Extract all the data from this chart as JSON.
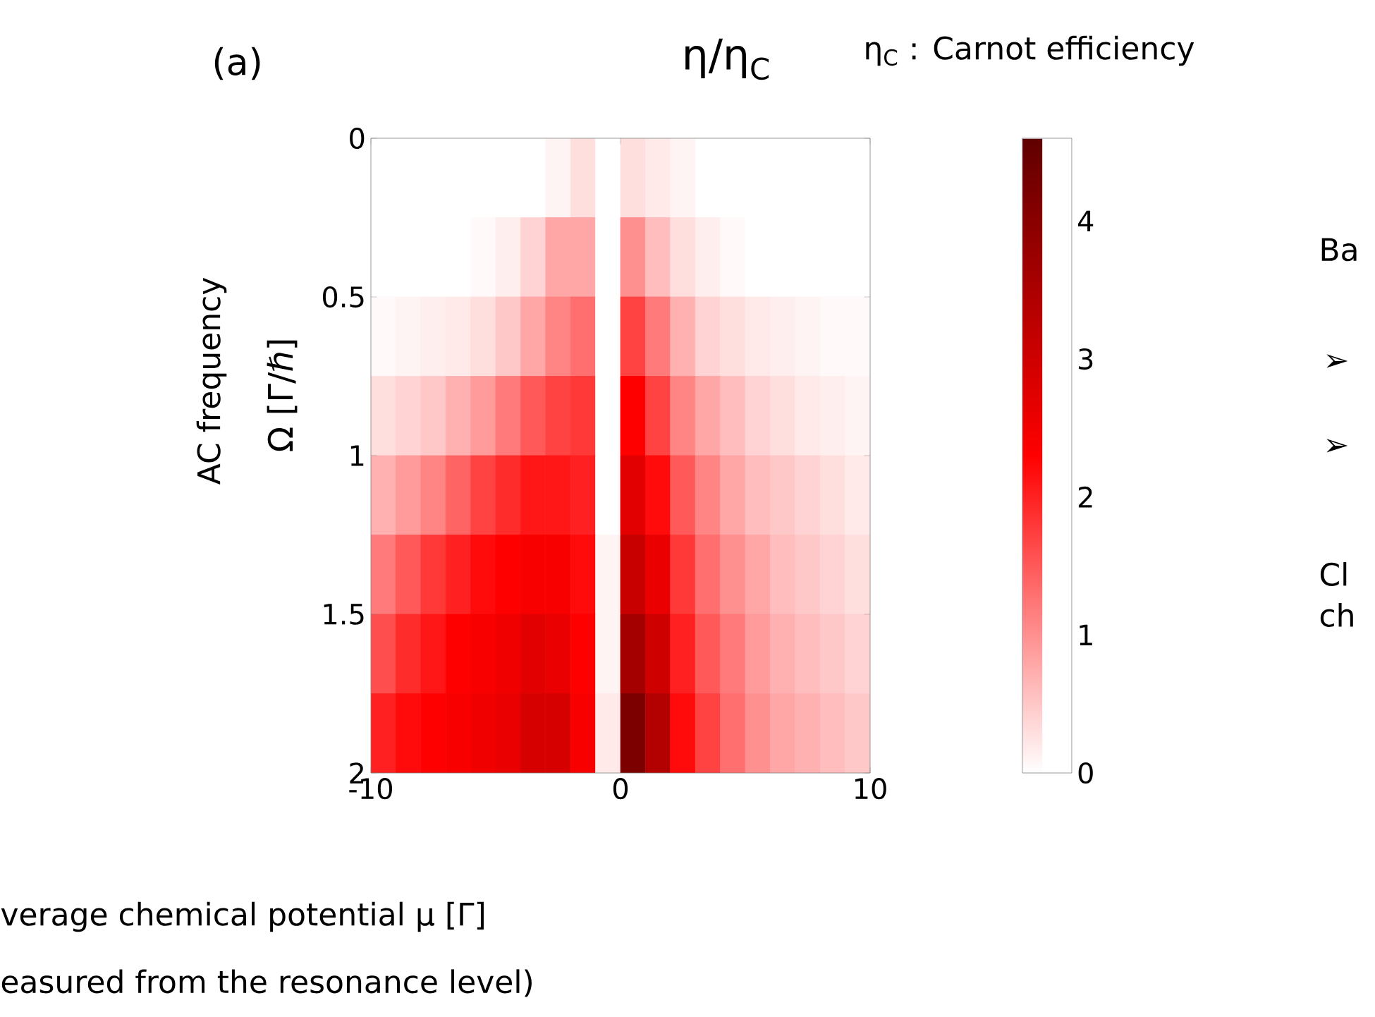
{
  "chart_data": {
    "type": "heatmap",
    "title": "η/η$_{C}$",
    "xlabel": "verage chemical potential μ [Γ]",
    "ylabel": "Ω [Γ/ℏ]",
    "annotations": [
      "(a)",
      "η$_{C}$ : Carnot efficiency",
      "AC frequency",
      "easured from the resonance level)",
      "Ba",
      "➢",
      "➢",
      "Cl",
      "ch"
    ],
    "xlim": [
      -10,
      10
    ],
    "ylim": [
      2,
      0
    ],
    "xticks": [
      -10,
      0,
      10
    ],
    "yticks": [
      0,
      0.5,
      1,
      1.5,
      2
    ],
    "clim": [
      0,
      4.6
    ],
    "cticks": [
      0,
      1,
      2,
      3,
      4
    ],
    "cells": [
      [
        0,
        0,
        0,
        0,
        0,
        0,
        0,
        0.1,
        0.3,
        0,
        0.3,
        0.2,
        0.1,
        0,
        0,
        0,
        0,
        0,
        0,
        0
      ],
      [
        0,
        0,
        0,
        0,
        0.05,
        0.15,
        0.4,
        0.8,
        0.8,
        0,
        1.0,
        0.6,
        0.3,
        0.15,
        0.05,
        0,
        0,
        0,
        0,
        0
      ],
      [
        0.05,
        0.1,
        0.15,
        0.2,
        0.3,
        0.5,
        0.8,
        1.1,
        1.3,
        0,
        1.7,
        1.2,
        0.7,
        0.4,
        0.3,
        0.2,
        0.15,
        0.1,
        0.05,
        0.05
      ],
      [
        0.3,
        0.4,
        0.5,
        0.7,
        0.9,
        1.2,
        1.5,
        1.7,
        1.8,
        0,
        2.3,
        1.7,
        1.1,
        0.8,
        0.6,
        0.4,
        0.3,
        0.2,
        0.15,
        0.1
      ],
      [
        0.7,
        0.9,
        1.1,
        1.4,
        1.7,
        1.9,
        2.1,
        2.1,
        2.0,
        0,
        2.7,
        2.2,
        1.5,
        1.1,
        0.8,
        0.6,
        0.5,
        0.4,
        0.3,
        0.2
      ],
      [
        1.2,
        1.5,
        1.8,
        2.0,
        2.2,
        2.3,
        2.4,
        2.4,
        2.2,
        0.1,
        3.1,
        2.6,
        1.8,
        1.3,
        1.0,
        0.8,
        0.6,
        0.5,
        0.4,
        0.3
      ],
      [
        1.6,
        1.9,
        2.1,
        2.3,
        2.4,
        2.5,
        2.7,
        2.6,
        2.3,
        0.1,
        3.6,
        3.0,
        2.0,
        1.5,
        1.2,
        0.9,
        0.7,
        0.6,
        0.5,
        0.4
      ],
      [
        2.0,
        2.2,
        2.3,
        2.4,
        2.5,
        2.6,
        2.9,
        2.9,
        2.4,
        0.2,
        4.2,
        3.4,
        2.2,
        1.7,
        1.3,
        1.0,
        0.8,
        0.7,
        0.6,
        0.5
      ]
    ]
  }
}
